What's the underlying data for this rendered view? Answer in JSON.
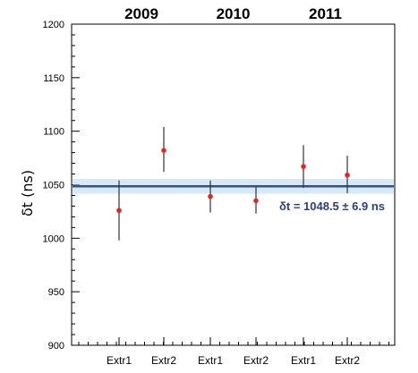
{
  "chart_data": {
    "type": "scatter",
    "ylabel": "δt (ns)",
    "ylim": [
      900,
      1200
    ],
    "y_ticks": [
      "900",
      "950",
      "1000",
      "1050",
      "1100",
      "1150",
      "1200"
    ],
    "categories": [
      "Extr1",
      "Extr2",
      "Extr1",
      "Extr2",
      "Extr1",
      "Extr2"
    ],
    "groups": [
      {
        "label": "2009",
        "indices": [
          0,
          1
        ]
      },
      {
        "label": "2010",
        "indices": [
          2,
          3
        ]
      },
      {
        "label": "2011",
        "indices": [
          4,
          5
        ]
      }
    ],
    "values": [
      1026,
      1082,
      1039,
      1035,
      1067,
      1059
    ],
    "err_low": [
      998,
      1062,
      1024,
      1023,
      1047,
      1042
    ],
    "err_high": [
      1054,
      1104,
      1054,
      1048,
      1087,
      1077
    ],
    "reference_line": {
      "value": 1048.5,
      "uncertainty": 6.9
    },
    "annotation": "δt = 1048.5 ± 6.9 ns",
    "colors": {
      "point": "#e0281e",
      "errorbar": "#333333",
      "line": "#33508a",
      "band": "#bcd9f0",
      "annotation": "#2d3f7a"
    },
    "grid": false
  }
}
